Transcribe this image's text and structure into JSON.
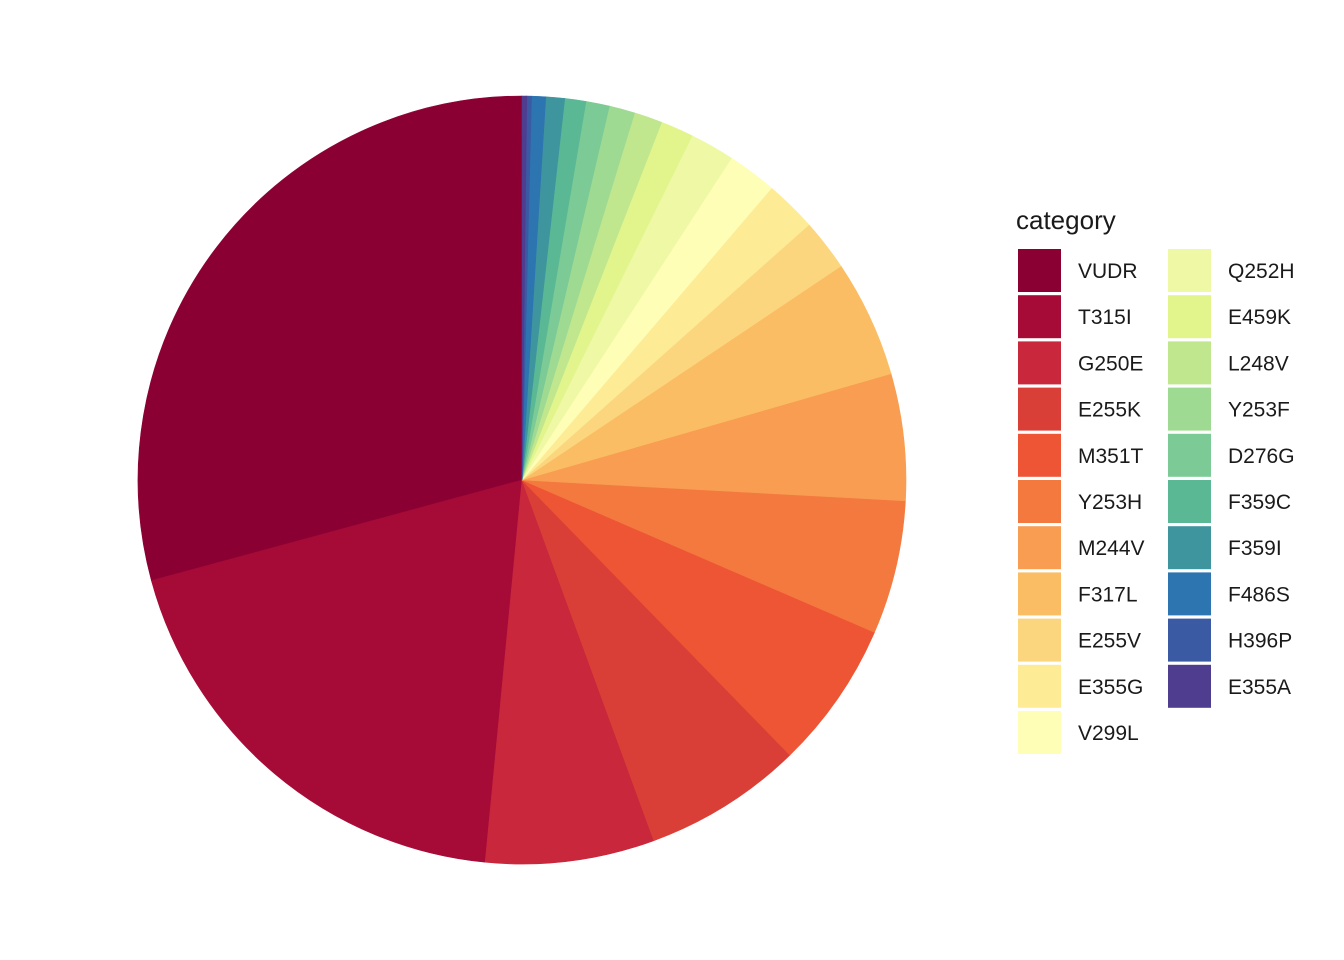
{
  "chart_data": {
    "type": "pie",
    "legend": {
      "title": "category",
      "placement": "right",
      "columns": 2
    },
    "slices": [
      {
        "label": "VUDR",
        "value": 29.6,
        "color": "#8B0033"
      },
      {
        "label": "T315I",
        "value": 19.5,
        "color": "#A60A36"
      },
      {
        "label": "G250E",
        "value": 7.2,
        "color": "#C8273C"
      },
      {
        "label": "E255K",
        "value": 6.8,
        "color": "#DA3F37"
      },
      {
        "label": "M351T",
        "value": 6.3,
        "color": "#EE5535"
      },
      {
        "label": "Y253H",
        "value": 5.7,
        "color": "#F4793F"
      },
      {
        "label": "M244V",
        "value": 5.4,
        "color": "#F89D51"
      },
      {
        "label": "F317L",
        "value": 5.0,
        "color": "#FBBD63"
      },
      {
        "label": "E255V",
        "value": 2.2,
        "color": "#FCD67E"
      },
      {
        "label": "E355G",
        "value": 2.2,
        "color": "#FDEB95"
      },
      {
        "label": "V299L",
        "value": 2.1,
        "color": "#FEFEB7"
      },
      {
        "label": "Q252H",
        "value": 1.9,
        "color": "#EFF8A5"
      },
      {
        "label": "E459K",
        "value": 1.4,
        "color": "#E2F58C"
      },
      {
        "label": "L248V",
        "value": 1.2,
        "color": "#C0E78E"
      },
      {
        "label": "Y253F",
        "value": 1.1,
        "color": "#9FDA93"
      },
      {
        "label": "D276G",
        "value": 1.0,
        "color": "#7CCA95"
      },
      {
        "label": "F359C",
        "value": 0.9,
        "color": "#5AB994"
      },
      {
        "label": "F359I",
        "value": 0.8,
        "color": "#3F959E"
      },
      {
        "label": "F486S",
        "value": 0.6,
        "color": "#2D75B0"
      },
      {
        "label": "H396P",
        "value": 0.2,
        "color": "#3B5AA4"
      },
      {
        "label": "E355A",
        "value": 0.2,
        "color": "#4F3D8F"
      }
    ]
  }
}
